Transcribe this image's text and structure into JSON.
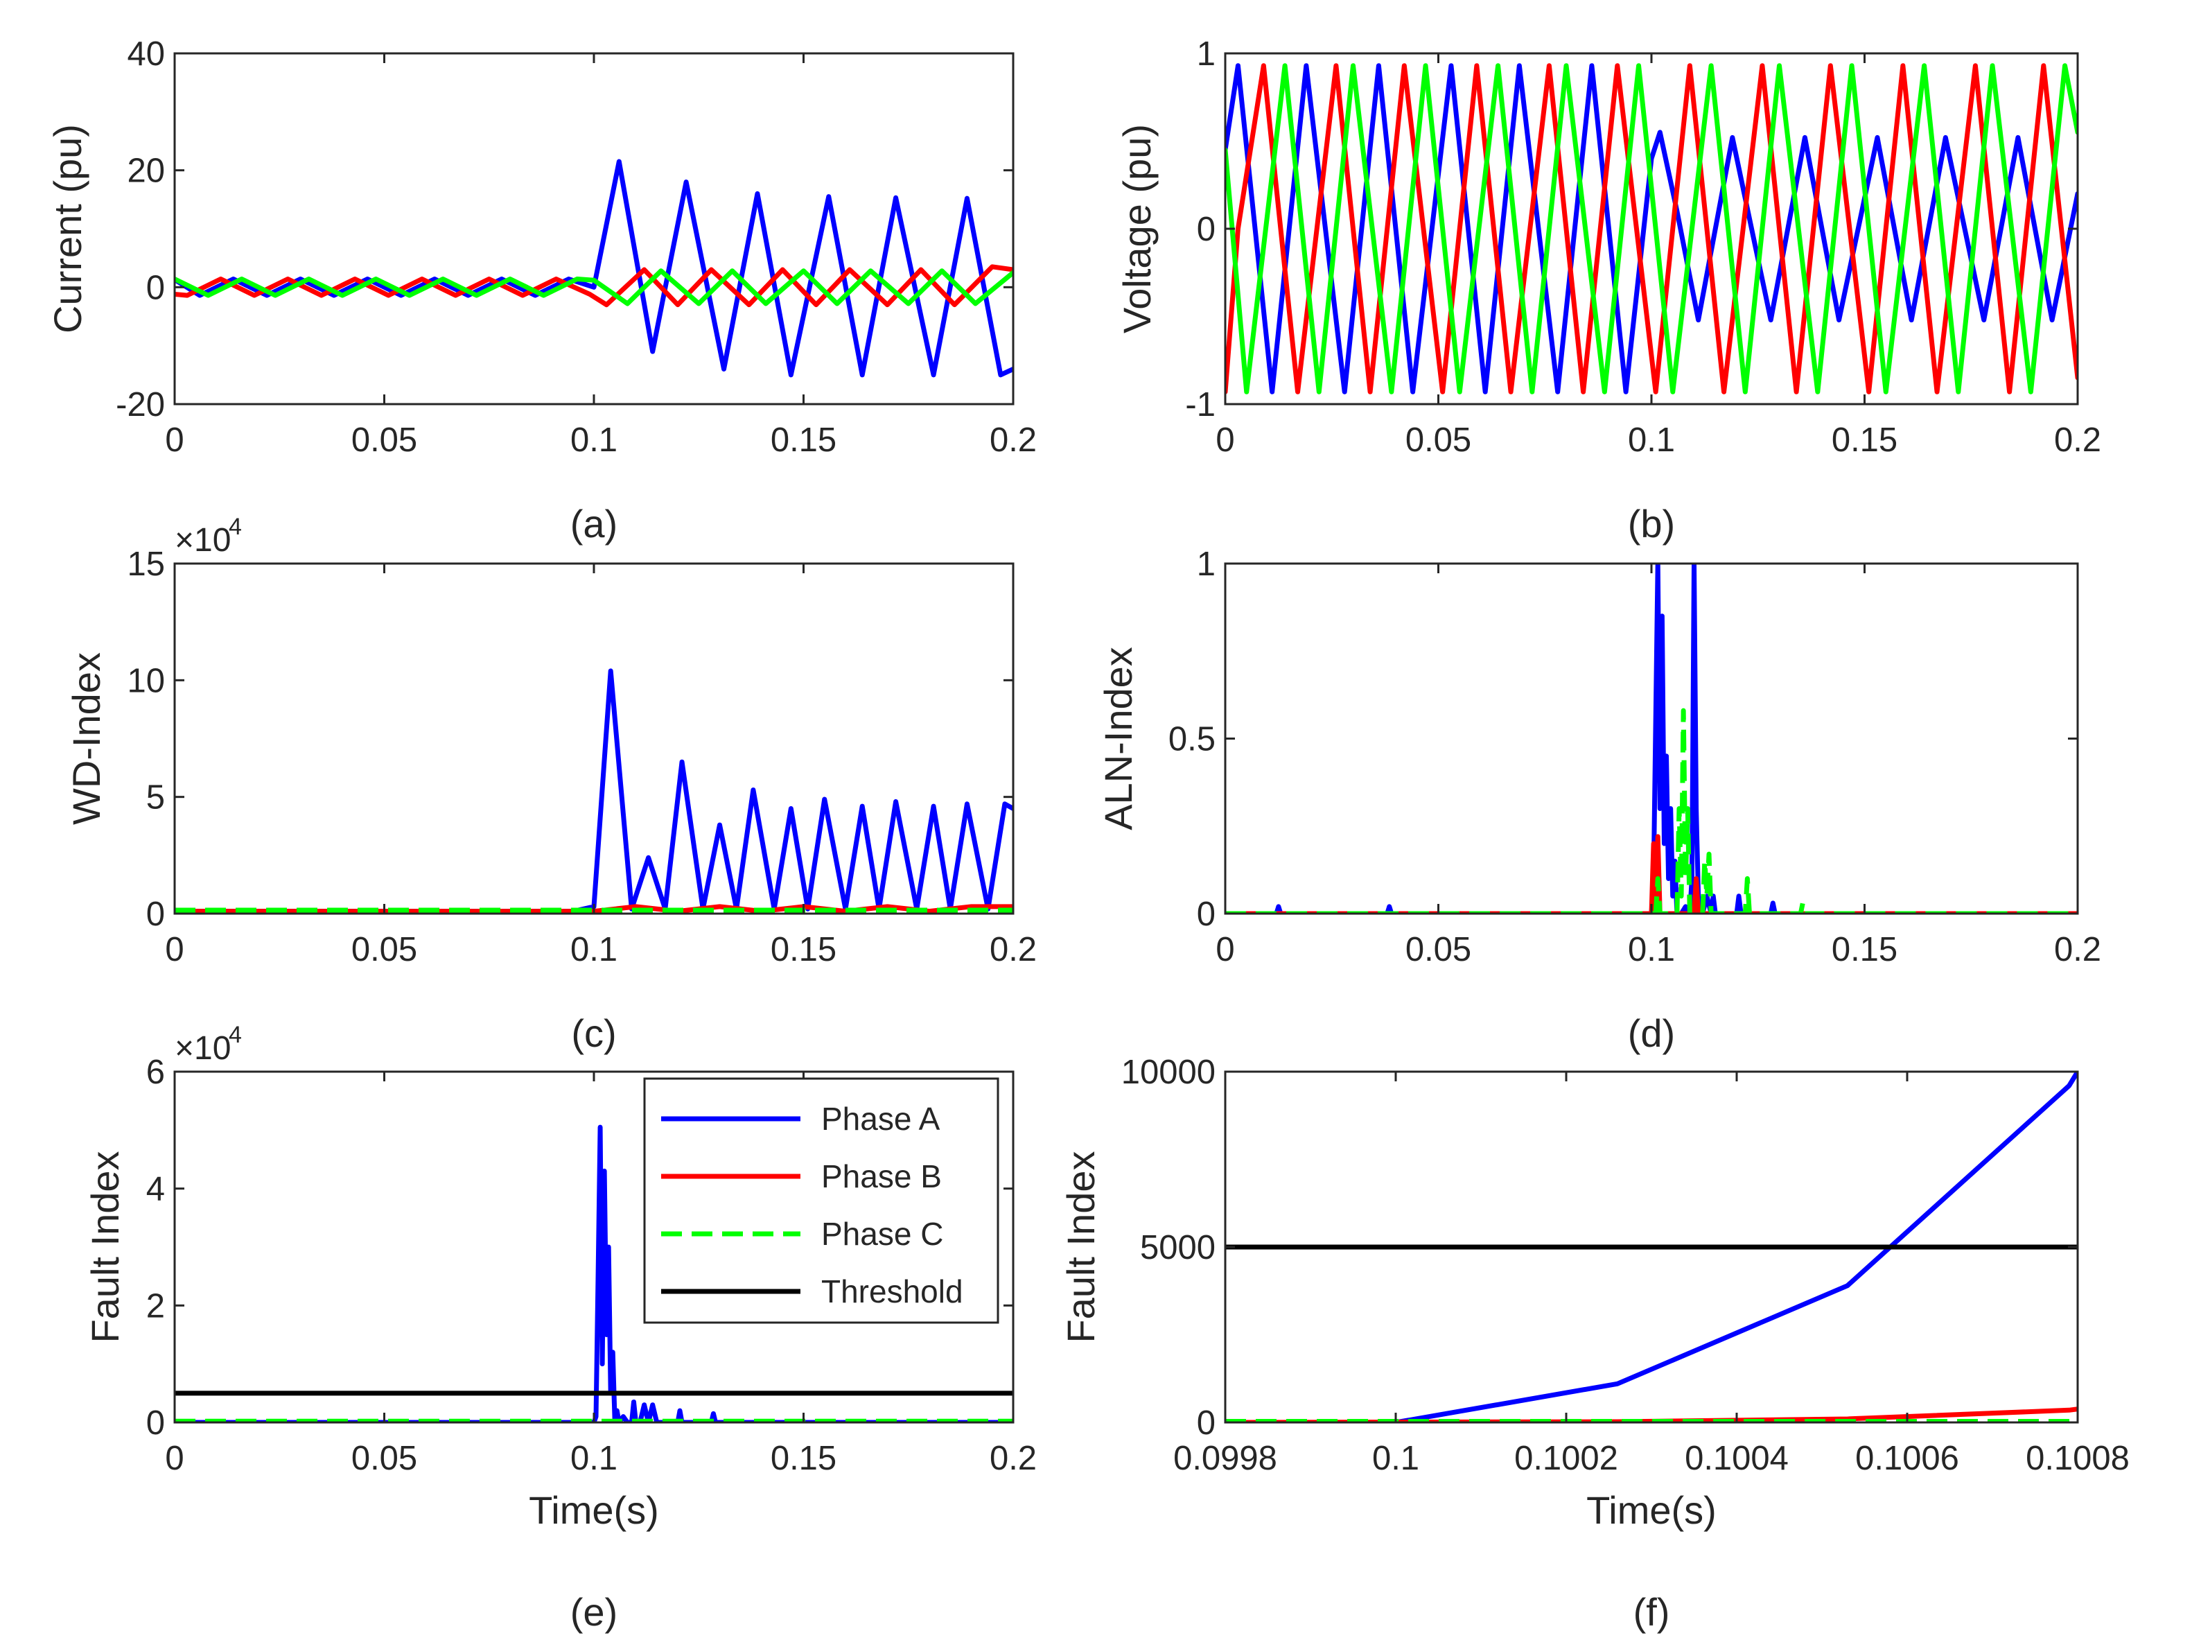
{
  "colors": {
    "phase_a": "#0000ff",
    "phase_b": "#ff0000",
    "phase_c": "#00ff00",
    "threshold": "#000000",
    "axes": "#262626"
  },
  "chart_data": [
    {
      "id": "a",
      "caption": "(a)",
      "type": "line",
      "xlabel": "",
      "ylabel": "Current (pu)",
      "xlim": [
        0,
        0.2
      ],
      "ylim": [
        -20,
        40
      ],
      "xticks": [
        0,
        0.05,
        0.1,
        0.15,
        0.2
      ],
      "xtick_labels": [
        "0",
        "0.05",
        "0.1",
        "0.15",
        "0.2"
      ],
      "yticks": [
        -20,
        0,
        20,
        40
      ],
      "ytick_labels": [
        "-20",
        "0",
        "20",
        "40"
      ],
      "series": [
        {
          "color": "#0000ff",
          "style": "solid",
          "x": [
            0,
            0.006,
            0.014,
            0.022,
            0.03,
            0.038,
            0.046,
            0.054,
            0.062,
            0.07,
            0.078,
            0.086,
            0.094,
            0.1,
            0.106,
            0.114,
            0.122,
            0.131,
            0.139,
            0.147,
            0.156,
            0.164,
            0.172,
            0.181,
            0.189,
            0.197,
            0.2
          ],
          "y": [
            1.3,
            -1.4,
            1.4,
            -1.4,
            1.4,
            -1.4,
            1.4,
            -1.4,
            1.4,
            -1.4,
            1.4,
            -1.4,
            1.4,
            0,
            21.5,
            -11,
            18,
            -14,
            16,
            -15,
            15.5,
            -15,
            15.3,
            -15,
            15.2,
            -15,
            -14
          ]
        },
        {
          "color": "#ff0000",
          "style": "solid",
          "x": [
            0,
            0.003,
            0.011,
            0.019,
            0.027,
            0.035,
            0.043,
            0.051,
            0.059,
            0.067,
            0.075,
            0.083,
            0.091,
            0.099,
            0.103,
            0.112,
            0.12,
            0.128,
            0.137,
            0.145,
            0.153,
            0.161,
            0.17,
            0.178,
            0.186,
            0.195,
            0.2
          ],
          "y": [
            -1.2,
            -1.4,
            1.4,
            -1.4,
            1.4,
            -1.4,
            1.4,
            -1.4,
            1.4,
            -1.4,
            1.4,
            -1.4,
            1.4,
            -1.2,
            -3,
            3,
            -3,
            3,
            -3,
            3,
            -3,
            3,
            -3,
            3,
            -3,
            3.5,
            3
          ]
        },
        {
          "color": "#00ff00",
          "style": "solid",
          "x": [
            0,
            0.008,
            0.016,
            0.024,
            0.032,
            0.04,
            0.048,
            0.056,
            0.064,
            0.072,
            0.08,
            0.088,
            0.096,
            0.1,
            0.108,
            0.116,
            0.125,
            0.133,
            0.141,
            0.15,
            0.158,
            0.166,
            0.175,
            0.183,
            0.191,
            0.2
          ],
          "y": [
            1.4,
            -1.4,
            1.4,
            -1.4,
            1.4,
            -1.4,
            1.4,
            -1.4,
            1.4,
            -1.4,
            1.4,
            -1.4,
            1.4,
            1.2,
            -2.8,
            2.8,
            -2.8,
            2.8,
            -2.8,
            2.8,
            -2.8,
            2.8,
            -2.8,
            2.8,
            -2.8,
            2.5
          ]
        }
      ]
    },
    {
      "id": "b",
      "caption": "(b)",
      "type": "line",
      "xlabel": "",
      "ylabel": "Voltage (pu)",
      "xlim": [
        0,
        0.2
      ],
      "ylim": [
        -1,
        1
      ],
      "xticks": [
        0,
        0.05,
        0.1,
        0.15,
        0.2
      ],
      "xtick_labels": [
        "0",
        "0.05",
        "0.1",
        "0.15",
        "0.2"
      ],
      "yticks": [
        -1,
        0,
        1
      ],
      "ytick_labels": [
        "-1",
        "0",
        "1"
      ],
      "series": [
        {
          "color": "#0000ff",
          "style": "solid",
          "x": [
            0,
            0.003,
            0.011,
            0.019,
            0.028,
            0.036,
            0.044,
            0.053,
            0.061,
            0.069,
            0.078,
            0.086,
            0.094,
            0.1,
            0.102,
            0.106,
            0.111,
            0.119,
            0.128,
            0.136,
            0.144,
            0.153,
            0.161,
            0.169,
            0.178,
            0.186,
            0.194,
            0.2
          ],
          "y": [
            0.45,
            0.93,
            -0.93,
            0.93,
            -0.93,
            0.93,
            -0.93,
            0.93,
            -0.93,
            0.93,
            -0.93,
            0.93,
            -0.93,
            0.4,
            0.55,
            0.1,
            -0.52,
            0.52,
            -0.52,
            0.52,
            -0.52,
            0.52,
            -0.52,
            0.52,
            -0.52,
            0.52,
            -0.52,
            0.2
          ]
        },
        {
          "color": "#ff0000",
          "style": "solid",
          "x": [
            0,
            0.003,
            0.009,
            0.017,
            0.026,
            0.034,
            0.042,
            0.051,
            0.059,
            0.067,
            0.076,
            0.084,
            0.092,
            0.101,
            0.109,
            0.117,
            0.126,
            0.134,
            0.142,
            0.151,
            0.159,
            0.167,
            0.176,
            0.184,
            0.192,
            0.2
          ],
          "y": [
            -0.93,
            0.0,
            0.93,
            -0.93,
            0.93,
            -0.93,
            0.93,
            -0.93,
            0.93,
            -0.93,
            0.93,
            -0.93,
            0.93,
            -0.93,
            0.93,
            -0.93,
            0.93,
            -0.93,
            0.93,
            -0.93,
            0.93,
            -0.93,
            0.93,
            -0.93,
            0.93,
            -0.85
          ]
        },
        {
          "color": "#00ff00",
          "style": "solid",
          "x": [
            0,
            0.005,
            0.014,
            0.022,
            0.03,
            0.039,
            0.047,
            0.055,
            0.064,
            0.072,
            0.08,
            0.089,
            0.097,
            0.105,
            0.114,
            0.122,
            0.13,
            0.139,
            0.147,
            0.155,
            0.164,
            0.172,
            0.18,
            0.189,
            0.197,
            0.2
          ],
          "y": [
            0.45,
            -0.93,
            0.93,
            -0.93,
            0.93,
            -0.93,
            0.93,
            -0.93,
            0.93,
            -0.93,
            0.93,
            -0.93,
            0.93,
            -0.93,
            0.93,
            -0.93,
            0.93,
            -0.93,
            0.93,
            -0.93,
            0.93,
            -0.93,
            0.93,
            -0.93,
            0.93,
            0.55
          ]
        }
      ]
    },
    {
      "id": "c",
      "caption": "(c)",
      "type": "line",
      "xlabel": "",
      "ylabel": "WD-Index",
      "multiplier": "×10",
      "multiplier_exp": "4",
      "xlim": [
        0,
        0.2
      ],
      "ylim": [
        0,
        15
      ],
      "xticks": [
        0,
        0.05,
        0.1,
        0.15,
        0.2
      ],
      "xtick_labels": [
        "0",
        "0.05",
        "0.1",
        "0.15",
        "0.2"
      ],
      "yticks": [
        0,
        5,
        10,
        15
      ],
      "ytick_labels": [
        "0",
        "5",
        "10",
        "15"
      ],
      "series": [
        {
          "color": "#0000ff",
          "style": "solid",
          "x": [
            0,
            0.095,
            0.1,
            0.104,
            0.109,
            0.113,
            0.117,
            0.121,
            0.126,
            0.13,
            0.134,
            0.138,
            0.143,
            0.147,
            0.151,
            0.155,
            0.16,
            0.164,
            0.168,
            0.172,
            0.177,
            0.181,
            0.185,
            0.189,
            0.194,
            0.198,
            0.2
          ],
          "y": [
            0.1,
            0.1,
            0.3,
            10.4,
            0.2,
            2.4,
            0.2,
            6.5,
            0.2,
            3.8,
            0.2,
            5.3,
            0.2,
            4.5,
            0.2,
            4.9,
            0.2,
            4.6,
            0.2,
            4.8,
            0.2,
            4.6,
            0.2,
            4.7,
            0.2,
            4.7,
            4.5
          ]
        },
        {
          "color": "#ff0000",
          "style": "solid",
          "x": [
            0,
            0.1,
            0.11,
            0.12,
            0.13,
            0.14,
            0.15,
            0.16,
            0.17,
            0.18,
            0.19,
            0.2
          ],
          "y": [
            0.1,
            0.1,
            0.3,
            0.1,
            0.3,
            0.1,
            0.3,
            0.1,
            0.3,
            0.1,
            0.3,
            0.3
          ]
        },
        {
          "color": "#00ff00",
          "style": "dashed",
          "x": [
            0,
            0.1,
            0.2
          ],
          "y": [
            0.15,
            0.15,
            0.15
          ]
        }
      ]
    },
    {
      "id": "d",
      "caption": "(d)",
      "type": "line",
      "xlabel": "",
      "ylabel": "ALN-Index",
      "xlim": [
        0,
        0.2
      ],
      "ylim": [
        0,
        1
      ],
      "xticks": [
        0,
        0.05,
        0.1,
        0.15,
        0.2
      ],
      "xtick_labels": [
        "0",
        "0.05",
        "0.1",
        "0.15",
        "0.2"
      ],
      "yticks": [
        0,
        0.5,
        1
      ],
      "ytick_labels": [
        "0",
        "0.5",
        "1"
      ],
      "series": [
        {
          "color": "#0000ff",
          "style": "solid",
          "x": [
            0,
            0.012,
            0.0125,
            0.013,
            0.038,
            0.0385,
            0.039,
            0.1,
            0.1005,
            0.1015,
            0.102,
            0.1025,
            0.103,
            0.1035,
            0.104,
            0.1045,
            0.105,
            0.1055,
            0.106,
            0.107,
            0.108,
            0.109,
            0.1095,
            0.11,
            0.1105,
            0.111,
            0.112,
            0.113,
            0.114,
            0.1145,
            0.115,
            0.12,
            0.1205,
            0.121,
            0.128,
            0.1285,
            0.129,
            0.2
          ],
          "y": [
            0,
            0,
            0.02,
            0,
            0,
            0.02,
            0,
            0,
            0.1,
            1.0,
            0.3,
            0.85,
            0.2,
            0.45,
            0.1,
            0.3,
            0.05,
            0.15,
            0,
            0,
            0.02,
            0,
            0.1,
            1.0,
            0.3,
            0.05,
            0,
            0.05,
            0,
            0.05,
            0,
            0,
            0.05,
            0,
            0,
            0.03,
            0,
            0
          ]
        },
        {
          "color": "#ff0000",
          "style": "solid",
          "x": [
            0,
            0.1,
            0.1005,
            0.101,
            0.1015,
            0.102,
            0.103,
            0.11,
            0.1105,
            0.111,
            0.112,
            0.2
          ],
          "y": [
            0,
            0,
            0.2,
            0.05,
            0.22,
            0,
            0,
            0,
            0.1,
            0,
            0,
            0
          ]
        },
        {
          "color": "#00ff00",
          "style": "dashed",
          "x": [
            0,
            0.101,
            0.1015,
            0.102,
            0.106,
            0.1065,
            0.107,
            0.1075,
            0.108,
            0.1085,
            0.109,
            0.112,
            0.1125,
            0.113,
            0.1135,
            0.114,
            0.122,
            0.1225,
            0.123,
            0.135,
            0.1355,
            0.136,
            0.2
          ],
          "y": [
            0,
            0,
            0.1,
            0,
            0,
            0.3,
            0.05,
            0.58,
            0.1,
            0.3,
            0,
            0,
            0.15,
            0.05,
            0.17,
            0,
            0,
            0.1,
            0,
            0,
            0.03,
            0,
            0
          ]
        }
      ]
    },
    {
      "id": "e",
      "caption": "(e)",
      "type": "line",
      "xlabel": "Time(s)",
      "ylabel": "Fault Index",
      "multiplier": "×10",
      "multiplier_exp": "4",
      "xlim": [
        0,
        0.2
      ],
      "ylim": [
        0,
        6
      ],
      "xticks": [
        0,
        0.05,
        0.1,
        0.15,
        0.2
      ],
      "xtick_labels": [
        "0",
        "0.05",
        "0.1",
        "0.15",
        "0.2"
      ],
      "yticks": [
        0,
        2,
        4,
        6
      ],
      "ytick_labels": [
        "0",
        "2",
        "4",
        "6"
      ],
      "legend": {
        "position": "top-right",
        "entries": [
          {
            "label": "Phase A",
            "color": "#0000ff",
            "style": "solid"
          },
          {
            "label": "Phase B",
            "color": "#ff0000",
            "style": "solid"
          },
          {
            "label": "Phase C",
            "color": "#00ff00",
            "style": "dashed"
          },
          {
            "label": "Threshold",
            "color": "#000000",
            "style": "solid"
          }
        ]
      },
      "series": [
        {
          "color": "#0000ff",
          "style": "solid",
          "x": [
            0,
            0.1,
            0.1005,
            0.101,
            0.1015,
            0.102,
            0.1025,
            0.103,
            0.1035,
            0.104,
            0.1045,
            0.105,
            0.1055,
            0.106,
            0.107,
            0.108,
            0.109,
            0.1095,
            0.11,
            0.111,
            0.112,
            0.113,
            0.114,
            0.115,
            0.12,
            0.1205,
            0.121,
            0.128,
            0.1285,
            0.129,
            0.2
          ],
          "y": [
            0,
            0,
            0.1,
            2.5,
            5.05,
            1.0,
            4.3,
            1.5,
            3.0,
            0.5,
            1.2,
            0,
            0.2,
            0,
            0.1,
            0,
            0,
            0.35,
            0,
            0,
            0.3,
            0,
            0.3,
            0,
            0,
            0.2,
            0,
            0,
            0.15,
            0,
            0
          ]
        },
        {
          "color": "#ff0000",
          "style": "dashed",
          "x": [
            0,
            0.2
          ],
          "y": [
            0,
            0
          ]
        },
        {
          "color": "#00ff00",
          "style": "dashed",
          "x": [
            0,
            0.2
          ],
          "y": [
            0.02,
            0.02
          ]
        },
        {
          "color": "#000000",
          "style": "solid",
          "x": [
            0,
            0.2
          ],
          "y": [
            0.5,
            0.5
          ]
        }
      ]
    },
    {
      "id": "f",
      "caption": "(f)",
      "type": "line",
      "xlabel": "Time(s)",
      "ylabel": "Fault Index",
      "xlim": [
        0.0998,
        0.1008
      ],
      "ylim": [
        0,
        10000
      ],
      "xticks": [
        0.0998,
        0.1,
        0.1002,
        0.1004,
        0.1006,
        0.1008
      ],
      "xtick_labels": [
        "0.0998",
        "0.1",
        "0.1002",
        "0.1004",
        "0.1006",
        "0.1008"
      ],
      "yticks": [
        0,
        5000,
        10000
      ],
      "ytick_labels": [
        "0",
        "5000",
        "10000"
      ],
      "series": [
        {
          "color": "#0000ff",
          "style": "solid",
          "x": [
            0.0998,
            0.1,
            0.10026,
            0.10053,
            0.10079,
            0.1008
          ],
          "y": [
            0,
            0,
            1100,
            3900,
            9600,
            10000
          ]
        },
        {
          "color": "#ff0000",
          "style": "solid",
          "x": [
            0.0998,
            0.10026,
            0.10053,
            0.10079,
            0.1008
          ],
          "y": [
            0,
            20,
            100,
            350,
            380
          ]
        },
        {
          "color": "#00ff00",
          "style": "dashed",
          "x": [
            0.0998,
            0.1008
          ],
          "y": [
            30,
            30
          ]
        },
        {
          "color": "#000000",
          "style": "solid",
          "x": [
            0.0998,
            0.1008
          ],
          "y": [
            5000,
            5000
          ]
        }
      ]
    }
  ]
}
